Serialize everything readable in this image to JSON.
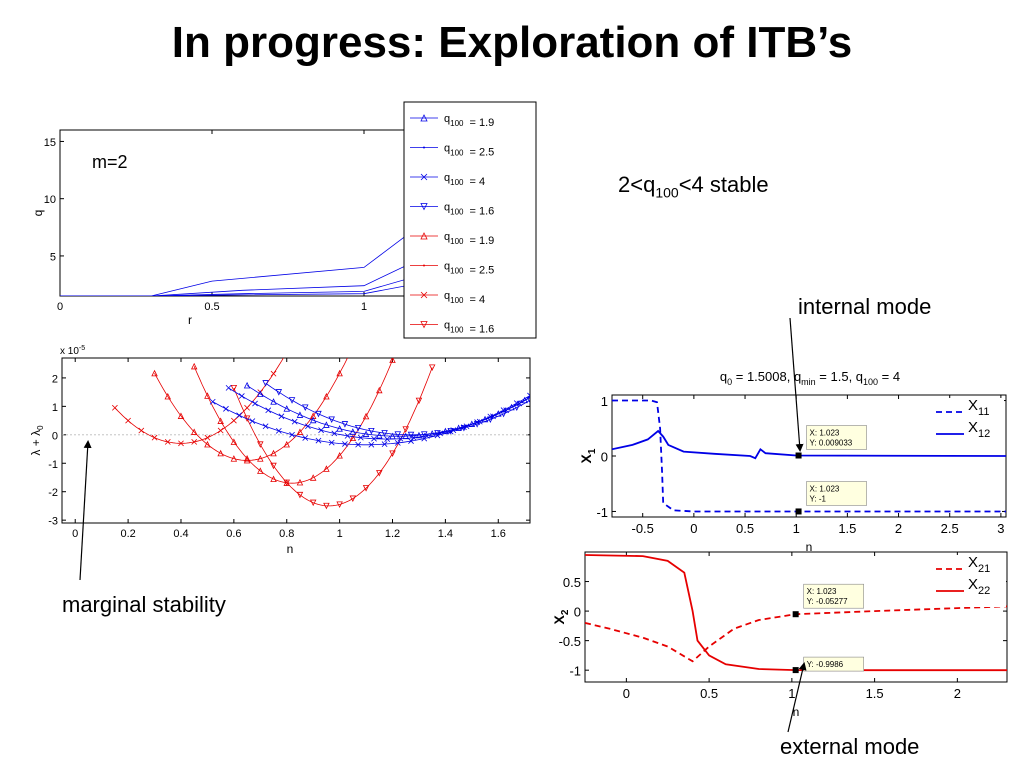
{
  "slide": {
    "title": "In progress: Exploration of ITB’s",
    "stable_note": {
      "prefix": "2<q",
      "sub": "100",
      "suffix": "<4 stable"
    },
    "internal_mode_label": "internal mode",
    "external_mode_label": "external mode",
    "marginal_stability_label": "marginal stability"
  },
  "colors": {
    "blue": "#0000e6",
    "red": "#e60000",
    "datatip": "#ffffe0"
  },
  "chart_data": [
    {
      "id": "q-profile",
      "type": "line",
      "annotation": "m=2",
      "xlabel": "r",
      "ylabel": "q",
      "xlim": [
        0,
        1.25
      ],
      "ylim": [
        1.5,
        16
      ],
      "xticks": [
        0,
        0.5,
        1
      ],
      "yticks": [
        5,
        10,
        15
      ],
      "series": [
        {
          "x": [
            0,
            0.3,
            0.5,
            1.0,
            1.3
          ],
          "y": [
            1.5,
            1.5,
            2.8,
            4.0,
            10.0
          ],
          "color": "blue"
        },
        {
          "x": [
            0,
            0.3,
            0.6,
            1.0,
            1.3
          ],
          "y": [
            1.5,
            1.5,
            2.0,
            2.4,
            6.2
          ],
          "color": "blue"
        },
        {
          "x": [
            0,
            0.3,
            0.6,
            1.0,
            1.3
          ],
          "y": [
            1.5,
            1.5,
            1.7,
            1.9,
            4.2
          ],
          "color": "blue"
        },
        {
          "x": [
            0,
            0.3,
            0.6,
            1.0,
            1.3
          ],
          "y": [
            1.5,
            1.5,
            1.6,
            1.7,
            3.2
          ],
          "color": "blue"
        }
      ],
      "legend": {
        "placement": "top-right",
        "entries": [
          {
            "label": "q",
            "sub": "100",
            "value": "= 1.9",
            "color": "blue",
            "marker": "triangle-up"
          },
          {
            "label": "q",
            "sub": "100",
            "value": "= 2.5",
            "color": "blue",
            "marker": "dot"
          },
          {
            "label": "q",
            "sub": "100",
            "value": "= 4",
            "color": "blue",
            "marker": "x"
          },
          {
            "label": "q",
            "sub": "100",
            "value": "= 1.6",
            "color": "blue",
            "marker": "triangle-down"
          },
          {
            "label": "q",
            "sub": "100",
            "value": "= 1.9",
            "color": "red",
            "marker": "triangle-up"
          },
          {
            "label": "q",
            "sub": "100",
            "value": "= 2.5",
            "color": "red",
            "marker": "dot"
          },
          {
            "label": "q",
            "sub": "100",
            "value": "= 4",
            "color": "red",
            "marker": "x"
          },
          {
            "label": "q",
            "sub": "100",
            "value": "= 1.6",
            "color": "red",
            "marker": "triangle-down"
          }
        ]
      }
    },
    {
      "id": "growth-rate",
      "type": "line",
      "xlabel": "n",
      "ylabel_main": "λ + λ",
      "ylabel_sub": "0",
      "exponent_label": "x 10",
      "exponent_power": "-5",
      "xlim": [
        -0.05,
        1.72
      ],
      "ylim": [
        -3.1,
        2.7
      ],
      "xticks": [
        0,
        0.2,
        0.4,
        0.6,
        0.8,
        1,
        1.2,
        1.4,
        1.6
      ],
      "yticks": [
        -3,
        -2,
        -1,
        0,
        1,
        2
      ],
      "zero_line": true,
      "series": [
        {
          "color": "red",
          "marker": "x",
          "n0": 0.4,
          "min": -0.3,
          "k": 20,
          "n_range": [
            0.15,
            0.95
          ]
        },
        {
          "color": "red",
          "marker": "triangle-up",
          "n0": 0.65,
          "min": -0.9,
          "k": 25,
          "n_range": [
            0.3,
            1.12
          ]
        },
        {
          "color": "red",
          "marker": "triangle-up",
          "n0": 0.82,
          "min": -1.7,
          "k": 30,
          "n_range": [
            0.45,
            1.25
          ]
        },
        {
          "color": "red",
          "marker": "triangle-down",
          "n0": 0.96,
          "min": -2.5,
          "k": 32,
          "n_range": [
            0.6,
            1.35
          ]
        },
        {
          "color": "blue",
          "marker": "x",
          "n0": 1.1,
          "min": -0.35,
          "k": 4.5,
          "n_range": [
            0.52,
            1.72
          ]
        },
        {
          "color": "blue",
          "marker": "x",
          "n0": 1.18,
          "min": -0.15,
          "k": 5,
          "n_range": [
            0.58,
            1.72
          ]
        },
        {
          "color": "blue",
          "marker": "triangle-up",
          "n0": 1.22,
          "min": -0.05,
          "k": 5.5,
          "n_range": [
            0.65,
            1.72
          ]
        },
        {
          "color": "blue",
          "marker": "triangle-down",
          "n0": 1.27,
          "min": 0.0,
          "k": 6,
          "n_range": [
            0.72,
            1.72
          ]
        }
      ]
    },
    {
      "id": "x1-mode",
      "type": "line",
      "title": {
        "a": "q",
        "a_sub": "0",
        "b": " = 1.5008, q",
        "b_sub": "min",
        "c": " = 1.5, q",
        "c_sub": "100",
        "d": " = 4"
      },
      "xlabel": "n",
      "ylabel": "X",
      "ylabel_sub": "1",
      "xlim": [
        -0.8,
        3.05
      ],
      "ylim": [
        -1.1,
        1.1
      ],
      "xticks": [
        -0.5,
        0,
        0.5,
        1,
        1.5,
        2,
        2.5,
        3
      ],
      "yticks": [
        -1,
        0,
        1
      ],
      "series": [
        {
          "name": "X",
          "name_sub": "11",
          "style": "dashed",
          "color": "blue",
          "x": [
            -0.8,
            -0.42,
            -0.36,
            -0.33,
            -0.31,
            -0.3,
            -0.2,
            0,
            1,
            3.05
          ],
          "y": [
            1,
            1,
            0.97,
            0.5,
            -0.3,
            -0.85,
            -0.98,
            -1,
            -1,
            -1
          ]
        },
        {
          "name": "X",
          "name_sub": "12",
          "style": "solid",
          "color": "blue",
          "x": [
            -0.8,
            -0.6,
            -0.45,
            -0.35,
            -0.3,
            -0.25,
            -0.1,
            0.2,
            0.55,
            0.6,
            0.65,
            0.7,
            1,
            3.05
          ],
          "y": [
            0.12,
            0.2,
            0.3,
            0.45,
            0.35,
            0.2,
            0.08,
            0.04,
            0,
            -0.04,
            0.12,
            0.05,
            0.009,
            0
          ]
        }
      ],
      "datatips": [
        {
          "x": 1.023,
          "y": 0.009033,
          "line1": "X: 1.023",
          "line2": "Y: 0.009033"
        },
        {
          "x": 1.023,
          "y": -1,
          "line1": "X: 1.023",
          "line2": "Y: -1"
        }
      ]
    },
    {
      "id": "x2-mode",
      "type": "line",
      "xlabel": "n",
      "ylabel": "X",
      "ylabel_sub": "2",
      "xlim": [
        -0.25,
        2.3
      ],
      "ylim": [
        -1.2,
        1.0
      ],
      "xticks": [
        0,
        0.5,
        1,
        1.5,
        2
      ],
      "yticks": [
        -1,
        -0.5,
        0,
        0.5
      ],
      "series": [
        {
          "name": "X",
          "name_sub": "21",
          "style": "dashed",
          "color": "red",
          "x": [
            -0.25,
            -0.1,
            0.1,
            0.25,
            0.4,
            0.5,
            0.65,
            0.8,
            1.023,
            1.5,
            2.0,
            2.3
          ],
          "y": [
            -0.2,
            -0.3,
            -0.45,
            -0.6,
            -0.85,
            -0.6,
            -0.3,
            -0.15,
            -0.05277,
            0.0,
            0.05,
            0.08
          ]
        },
        {
          "name": "X",
          "name_sub": "22",
          "style": "solid",
          "color": "red",
          "x": [
            -0.25,
            0.1,
            0.25,
            0.35,
            0.4,
            0.43,
            0.5,
            0.6,
            0.8,
            1.023,
            1.5,
            2.3
          ],
          "y": [
            0.95,
            0.93,
            0.85,
            0.65,
            0.0,
            -0.5,
            -0.75,
            -0.9,
            -0.98,
            -0.9986,
            -1,
            -1
          ]
        }
      ],
      "datatips": [
        {
          "x": 1.023,
          "y": -0.05277,
          "line1": "X: 1.023",
          "line2": "Y: -0.05277"
        },
        {
          "x": 1.023,
          "y": -0.9986,
          "line1": "",
          "line2": "Y: -0.9986"
        }
      ]
    }
  ]
}
